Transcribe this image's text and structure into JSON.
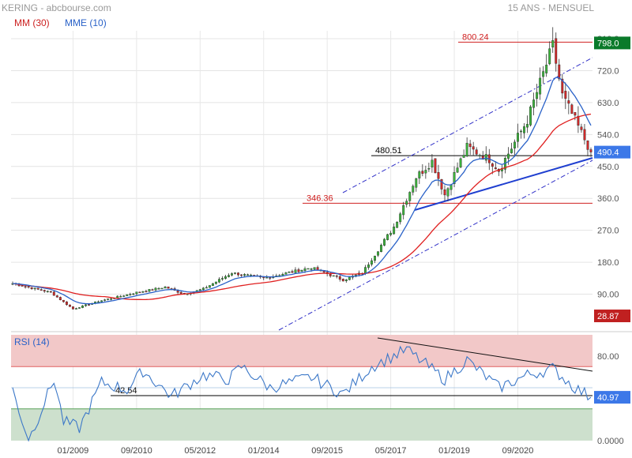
{
  "header": {
    "symbol_source": "KERING - abcbourse.com",
    "period": "15 ANS - MENSUEL",
    "legend": [
      {
        "label": "MM (30)",
        "color": "#cc2020"
      },
      {
        "label": "MME (10)",
        "color": "#2a62c8"
      }
    ]
  },
  "colors": {
    "up_candle": "#3cb43c",
    "down_candle": "#d02a2a",
    "mm30": "#e02020",
    "mme10": "#2a62c8",
    "trend_blue": "#1f3fd0",
    "channel": "#3030c8",
    "level_red": "#d02020",
    "rsi_line": "#3c78c8",
    "rsi_over_fill": "#f2c8c8",
    "rsi_under_fill": "#cde0cd"
  },
  "chart_data": [
    {
      "type": "candlestick",
      "title": "",
      "frequency": "monthly",
      "x_tick_labels": [
        "01/2009",
        "09/2010",
        "05/2012",
        "01/2014",
        "09/2015",
        "05/2017",
        "01/2019",
        "09/2020"
      ],
      "x_range": [
        "2007-06",
        "2022-08"
      ],
      "ylim": [
        0,
        810
      ],
      "y_tick_labels": [
        "810.0",
        "720.0",
        "630.0",
        "540.0",
        "450.0",
        "360.0",
        "270.0",
        "180.0",
        "90.00"
      ],
      "grid": true,
      "indicators": [
        "MM (30)",
        "MME (10)"
      ],
      "price_path_monthly_close_anchors": [
        {
          "date": "2007-06",
          "close": 120
        },
        {
          "date": "2008-06",
          "close": 95
        },
        {
          "date": "2009-01",
          "close": 48
        },
        {
          "date": "2009-09",
          "close": 70
        },
        {
          "date": "2010-09",
          "close": 95
        },
        {
          "date": "2011-06",
          "close": 110
        },
        {
          "date": "2011-12",
          "close": 90
        },
        {
          "date": "2012-06",
          "close": 105
        },
        {
          "date": "2013-03",
          "close": 150
        },
        {
          "date": "2014-01",
          "close": 135
        },
        {
          "date": "2015-04",
          "close": 165
        },
        {
          "date": "2016-02",
          "close": 130
        },
        {
          "date": "2016-08",
          "close": 150
        },
        {
          "date": "2017-06",
          "close": 280
        },
        {
          "date": "2018-01",
          "close": 420
        },
        {
          "date": "2018-06",
          "close": 465
        },
        {
          "date": "2018-10",
          "close": 370
        },
        {
          "date": "2019-05",
          "close": 505
        },
        {
          "date": "2019-12",
          "close": 470
        },
        {
          "date": "2020-03",
          "close": 440
        },
        {
          "date": "2020-12",
          "close": 580
        },
        {
          "date": "2021-08",
          "close": 790
        },
        {
          "date": "2021-11",
          "close": 650
        },
        {
          "date": "2022-03",
          "close": 580
        },
        {
          "date": "2022-08",
          "close": 490.4
        }
      ],
      "levels": [
        {
          "label": "800.24",
          "value": 800.24,
          "color": "#d02020"
        },
        {
          "label": "480.51",
          "value": 480.51,
          "color": "#000000"
        },
        {
          "label": "346.36",
          "value": 346.36,
          "color": "#d02020"
        }
      ],
      "badges": [
        {
          "label": "798.0",
          "value": 798.0,
          "color": "#0a7a2a"
        },
        {
          "label": "490.4",
          "value": 490.4,
          "color": "#3c78e8"
        },
        {
          "label": "28.87",
          "value": 28.87,
          "color": "#c02020"
        }
      ]
    },
    {
      "type": "line",
      "title": "RSI (14)",
      "ylim": [
        0,
        100
      ],
      "y_tick_labels": [
        "80.00",
        "0.0000"
      ],
      "overbought": 70,
      "oversold": 30,
      "rsi_anchors": [
        {
          "date": "2007-06",
          "value": 48
        },
        {
          "date": "2007-11",
          "value": 0
        },
        {
          "date": "2008-07",
          "value": 58
        },
        {
          "date": "2008-10",
          "value": 18
        },
        {
          "date": "2009-03",
          "value": 12
        },
        {
          "date": "2009-10",
          "value": 55
        },
        {
          "date": "2010-06",
          "value": 48
        },
        {
          "date": "2010-11",
          "value": 66
        },
        {
          "date": "2011-08",
          "value": 42
        },
        {
          "date": "2012-06",
          "value": 62
        },
        {
          "date": "2013-02",
          "value": 58
        },
        {
          "date": "2013-06",
          "value": 70
        },
        {
          "date": "2014-03",
          "value": 50
        },
        {
          "date": "2015-04",
          "value": 60
        },
        {
          "date": "2016-02",
          "value": 44
        },
        {
          "date": "2016-11",
          "value": 70
        },
        {
          "date": "2017-10",
          "value": 86
        },
        {
          "date": "2018-10",
          "value": 58
        },
        {
          "date": "2019-05",
          "value": 76
        },
        {
          "date": "2020-03",
          "value": 50
        },
        {
          "date": "2020-12",
          "value": 62
        },
        {
          "date": "2021-08",
          "value": 68
        },
        {
          "date": "2022-03",
          "value": 50
        },
        {
          "date": "2022-08",
          "value": 40.97
        }
      ],
      "levels": [
        {
          "label": "42.54",
          "value": 42.54,
          "color": "#000000"
        }
      ],
      "badges": [
        {
          "label": "40.97",
          "value": 40.97,
          "color": "#3c78e8"
        }
      ]
    }
  ]
}
